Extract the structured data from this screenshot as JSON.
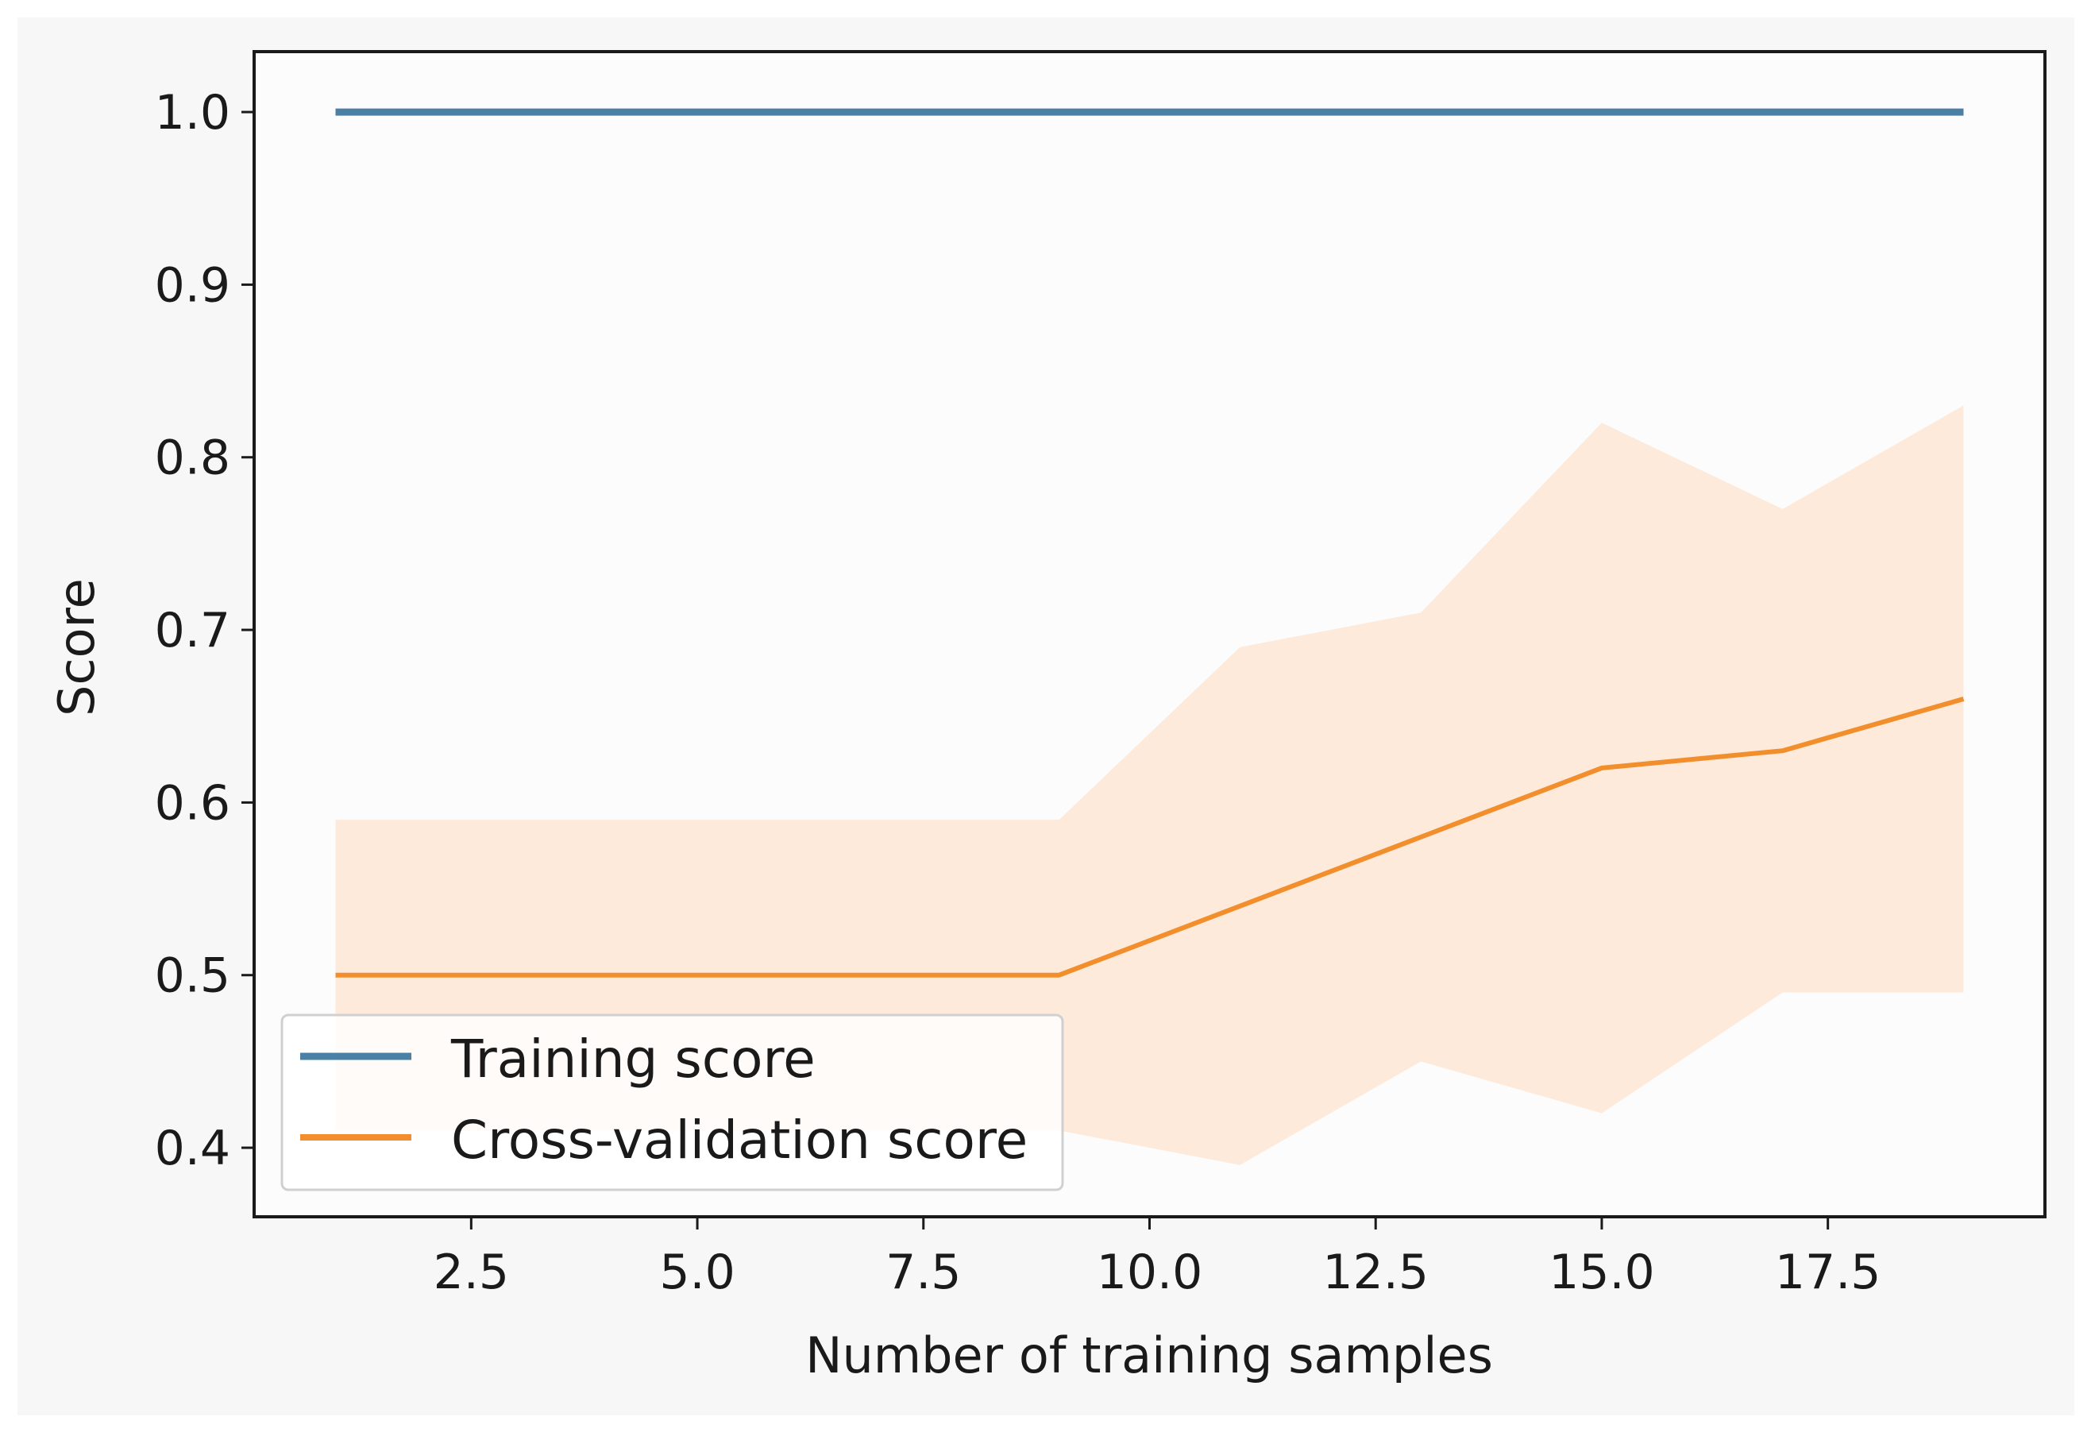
{
  "chart_data": {
    "type": "line",
    "title": "",
    "xlabel": "Number of training samples",
    "ylabel": "Score",
    "xlim": [
      0.1,
      19.9
    ],
    "ylim": [
      0.36,
      1.035
    ],
    "xticks": [
      2.5,
      5.0,
      7.5,
      10.0,
      12.5,
      15.0,
      17.5
    ],
    "xtick_labels": [
      "2.5",
      "5.0",
      "7.5",
      "10.0",
      "12.5",
      "15.0",
      "17.5"
    ],
    "yticks": [
      0.4,
      0.5,
      0.6,
      0.7,
      0.8,
      0.9,
      1.0
    ],
    "ytick_labels": [
      "0.4",
      "0.5",
      "0.6",
      "0.7",
      "0.8",
      "0.9",
      "1.0"
    ],
    "grid": false,
    "legend_position": "lower-left",
    "x": [
      1,
      3,
      5,
      7,
      9,
      11,
      13,
      15,
      17,
      19
    ],
    "series": [
      {
        "name": "Training score",
        "color": "#4a7fa6",
        "values": [
          1.0,
          1.0,
          1.0,
          1.0,
          1.0,
          1.0,
          1.0,
          1.0,
          1.0,
          1.0
        ]
      },
      {
        "name": "Cross-validation score",
        "color": "#f28e2b",
        "band_color": "#fde4cf",
        "values": [
          0.5,
          0.5,
          0.5,
          0.5,
          0.5,
          0.54,
          0.58,
          0.62,
          0.63,
          0.66
        ],
        "upper": [
          0.59,
          0.59,
          0.59,
          0.59,
          0.59,
          0.69,
          0.71,
          0.82,
          0.77,
          0.83
        ],
        "lower": [
          0.41,
          0.41,
          0.41,
          0.41,
          0.41,
          0.39,
          0.45,
          0.42,
          0.49,
          0.49
        ]
      }
    ]
  }
}
